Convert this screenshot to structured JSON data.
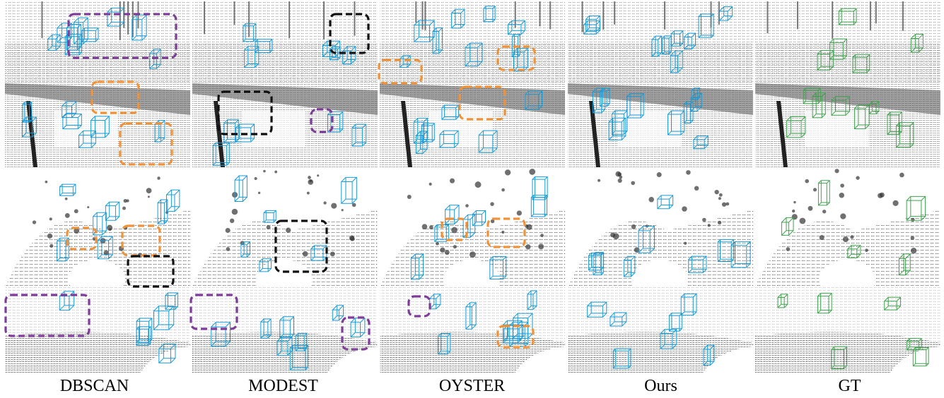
{
  "figure": {
    "columns": [
      {
        "label": "DBSCAN",
        "box_color": "#1a9ad6"
      },
      {
        "label": "MODEST",
        "box_color": "#1a9ad6"
      },
      {
        "label": "OYSTER",
        "box_color": "#1a9ad6"
      },
      {
        "label": "Ours",
        "box_color": "#1a9ad6"
      },
      {
        "label": "GT",
        "box_color": "#3fa34d"
      }
    ],
    "rows": 4,
    "highlight_colors": {
      "purple": "#7d3c98",
      "orange": "#f0923a",
      "black": "#111111"
    }
  }
}
